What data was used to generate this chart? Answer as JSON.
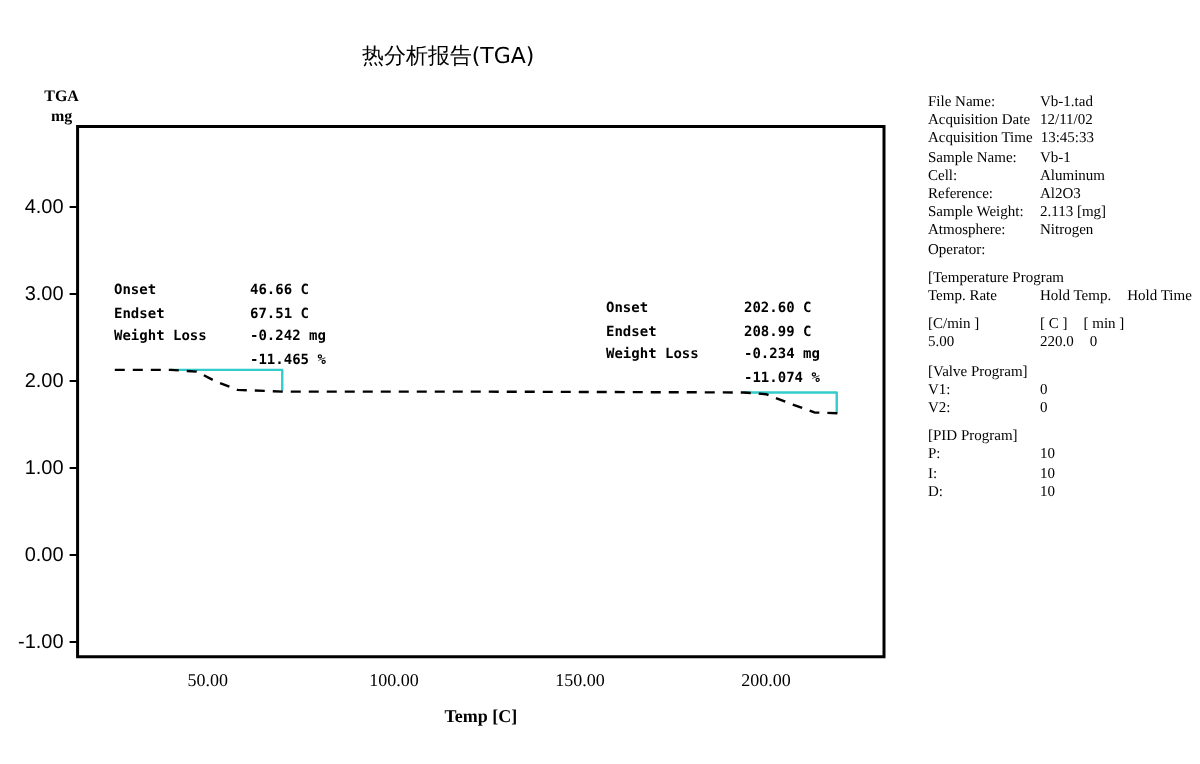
{
  "chart_data": {
    "type": "line",
    "title": "热分析报告(TGA)",
    "xlabel": "Temp [C]",
    "ylabel": "TGA\nmg",
    "xlim": [
      15,
      231.7
    ],
    "ylim": [
      -1.17,
      4.93
    ],
    "xticks": [
      {
        "value": 50,
        "label": "50.00"
      },
      {
        "value": 100,
        "label": "100.00"
      },
      {
        "value": 150,
        "label": "150.00"
      },
      {
        "value": 200,
        "label": "200.00"
      }
    ],
    "yticks": [
      {
        "value": -1,
        "label": "-1.00"
      },
      {
        "value": 0,
        "label": "0.00"
      },
      {
        "value": 1,
        "label": "1.00"
      },
      {
        "value": 2,
        "label": "2.00"
      },
      {
        "value": 3,
        "label": "3.00"
      },
      {
        "value": 4,
        "label": "4.00"
      }
    ],
    "grid": false,
    "legend": false,
    "marker": "none",
    "series": [
      {
        "color": "#000000",
        "line_style": "dashed",
        "x": [
          25,
          40,
          47,
          52,
          58,
          70,
          120,
          194,
          200,
          206,
          213,
          220
        ],
        "values": [
          2.13,
          2.13,
          2.11,
          2.0,
          1.9,
          1.88,
          1.88,
          1.87,
          1.85,
          1.75,
          1.64,
          1.63
        ]
      },
      {
        "color": "#33cccc",
        "line_style": "solid",
        "x": [
          40,
          70,
          70
        ],
        "values": [
          2.13,
          2.13,
          1.9
        ]
      },
      {
        "color": "#33cccc",
        "line_style": "solid",
        "x": [
          194,
          219,
          219
        ],
        "values": [
          1.87,
          1.87,
          1.64
        ]
      }
    ],
    "annotations": [
      "Onset  46.66 C",
      "Endset  67.51 C",
      "Weight Loss  -0.242 mg",
      "-11.465 %",
      "Onset  202.60 C",
      "Endset  208.99 C",
      "Weight Loss  -0.234 mg",
      "-11.074 %",
      "File Name:  Vb-1.tad",
      "Acquisition Date  12/11/02",
      "Acquisition Time  13:45:33",
      "Sample Name:  Vb-1",
      "Cell:  Aluminum",
      "Reference:  Al2O3",
      "Sample Weight:  2.113 [mg]",
      "Atmosphere:  Nitrogen",
      "Operator:",
      "[Temperature Program",
      "Temp. Rate  Hold Temp.  Hold Time",
      "[C/min ]  [ C ]  [ min ]",
      "5.00  220.0  0",
      "[Valve Program]",
      "V1:  0",
      "V2:  0",
      "[PID Program]",
      "P:  10",
      "I:  10",
      "D:  10"
    ]
  }
}
